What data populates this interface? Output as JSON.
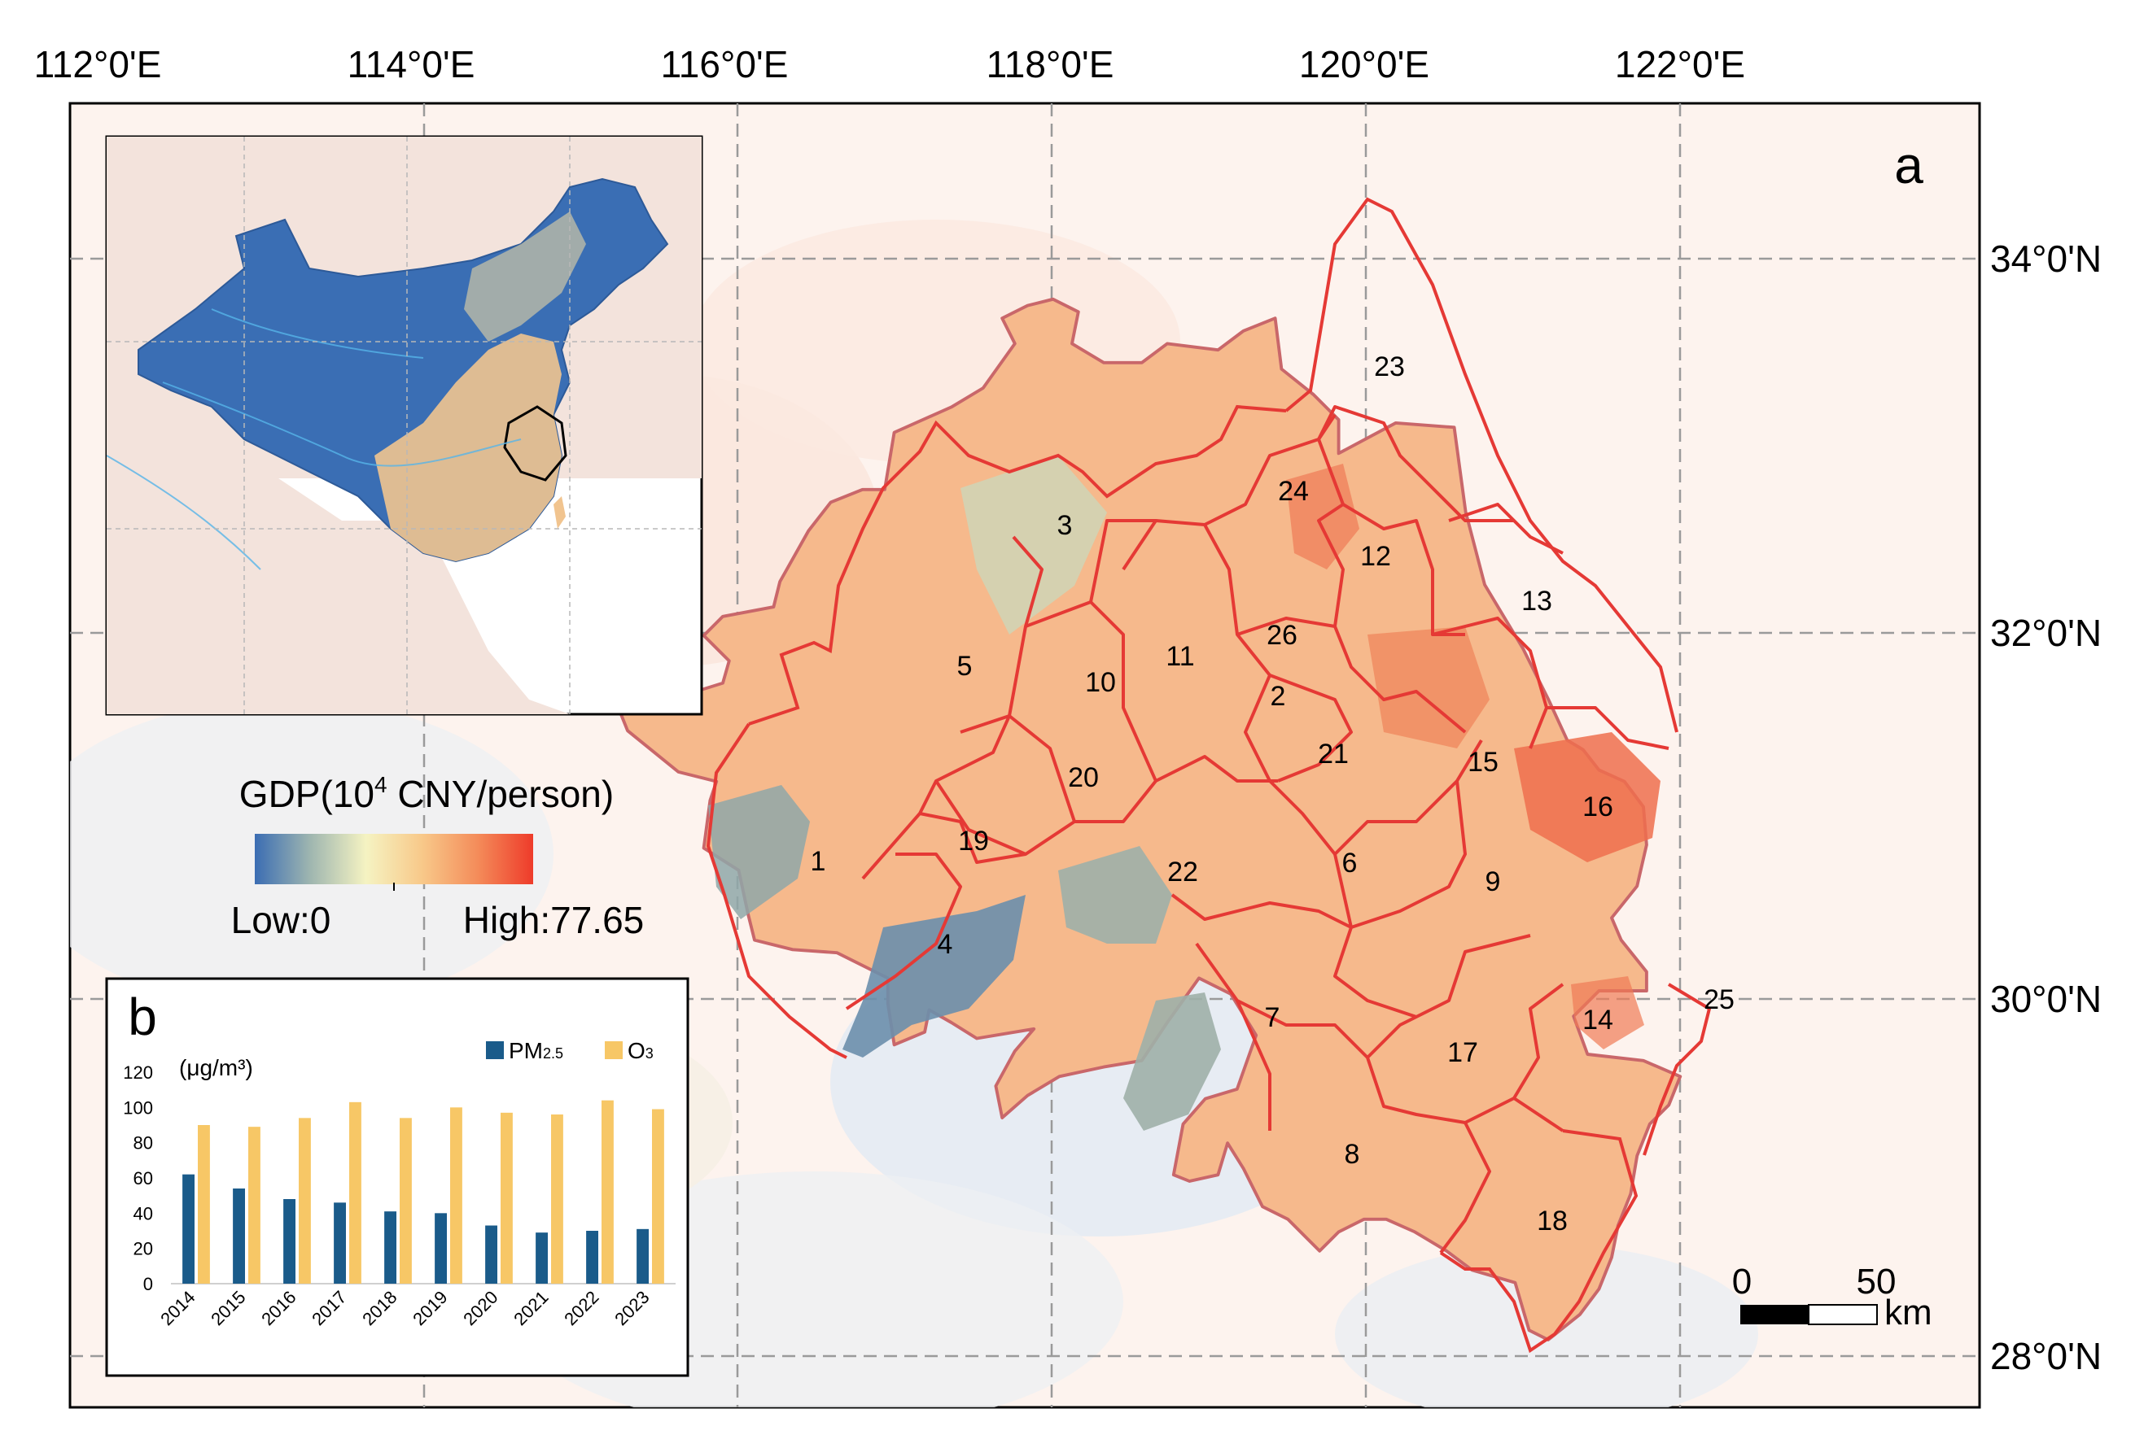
{
  "panel_a": {
    "label": "a",
    "lon_labels": [
      "112°0'E",
      "114°0'E",
      "116°0'E",
      "118°0'E",
      "120°0'E",
      "122°0'E"
    ],
    "lat_labels": [
      "34°0'N",
      "32°0'N",
      "30°0'N",
      "28°0'N"
    ],
    "city_labels": [
      "1",
      "2",
      "3",
      "4",
      "5",
      "6",
      "7",
      "8",
      "9",
      "10",
      "11",
      "12",
      "13",
      "14",
      "15",
      "16",
      "17",
      "18",
      "19",
      "20",
      "21",
      "22",
      "23",
      "24",
      "25",
      "26"
    ],
    "legend": {
      "title_prefix": "GDP(10",
      "title_sup": "4",
      "title_suffix": " CNY/person)",
      "low_label": "Low:0",
      "high_label": "High:77.65",
      "colors": [
        "#3b6db3",
        "#9fb6b0",
        "#f5f3c2",
        "#f8c98a",
        "#f48c5a",
        "#ee3b2a"
      ]
    },
    "scalebar": {
      "zero": "0",
      "fifty": "50",
      "unit": "km"
    },
    "colors": {
      "boundary": "#e53935",
      "region_fill": "#f6b98c",
      "high_fill": "#ef6f4e",
      "low_fill": "#8fa7a8"
    }
  },
  "panel_b": {
    "label": "b",
    "unit_label": "(μg/m³)",
    "legend_pm": "PM",
    "legend_pm_sub": "2.5",
    "legend_o3": "O",
    "legend_o3_sub": "3",
    "colors": {
      "pm": "#1a5b8a",
      "o3": "#f7c766"
    }
  },
  "chart_data": {
    "type": "bar",
    "categories": [
      "2014",
      "2015",
      "2016",
      "2017",
      "2018",
      "2019",
      "2020",
      "2021",
      "2022",
      "2023"
    ],
    "series": [
      {
        "name": "PM2.5",
        "values": [
          62,
          54,
          48,
          46,
          41,
          40,
          33,
          29,
          30,
          31
        ]
      },
      {
        "name": "O3",
        "values": [
          90,
          89,
          94,
          103,
          94,
          100,
          97,
          96,
          104,
          99
        ]
      }
    ],
    "ylabel": "(μg/m³)",
    "ylim": [
      0,
      120
    ],
    "yticks": [
      0,
      20,
      40,
      60,
      80,
      100,
      120
    ],
    "grid": false,
    "legend": "top-right"
  }
}
